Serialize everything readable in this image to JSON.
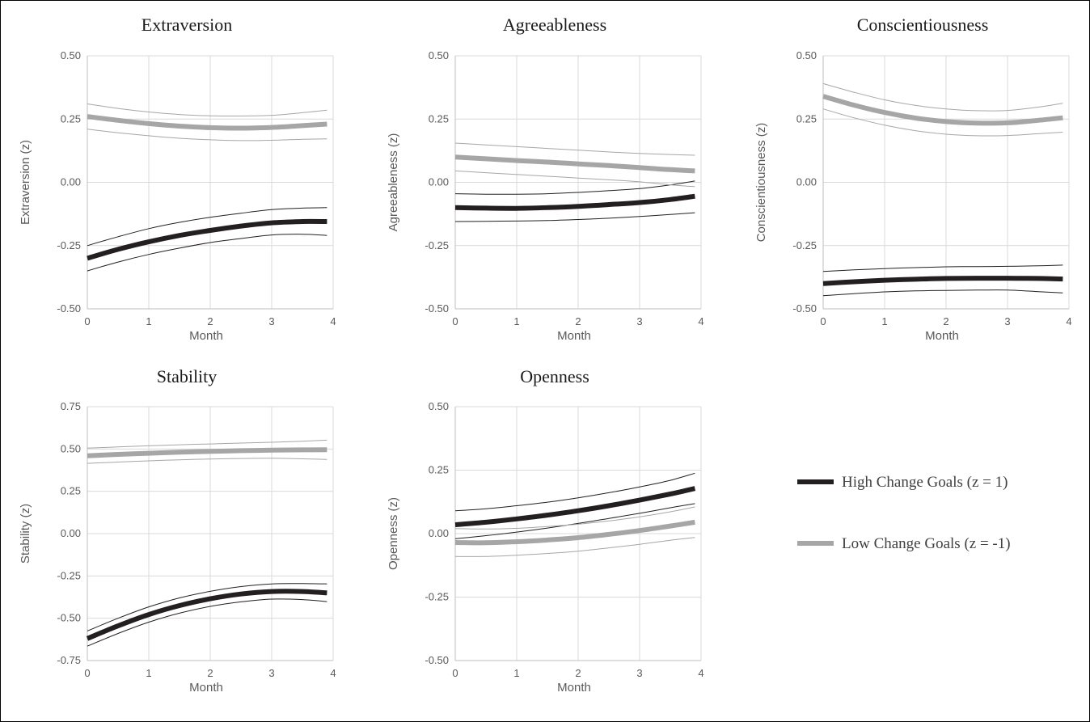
{
  "chart_data": [
    {
      "type": "line",
      "title": "Extraversion",
      "xlabel": "Month",
      "ylabel": "Extraversion (z)",
      "xlim": [
        0,
        4
      ],
      "ylim": [
        -0.5,
        0.5
      ],
      "xticks": [
        "0",
        "1",
        "2",
        "3",
        "4"
      ],
      "yticks": [
        "0.50",
        "0.25",
        "0.00",
        "-0.25",
        "-0.50"
      ],
      "yticks_values": [
        0.5,
        0.25,
        0,
        -0.25,
        -0.5
      ],
      "grid": "vertical",
      "x": [
        0,
        0.5,
        1,
        1.5,
        2,
        2.5,
        3,
        3.5,
        3.9
      ],
      "series": [
        {
          "name": "High Change Goals (z = 1)",
          "role": "estimate",
          "group": "high",
          "values": [
            -0.3,
            -0.265,
            -0.235,
            -0.21,
            -0.19,
            -0.173,
            -0.16,
            -0.155,
            -0.155
          ]
        },
        {
          "role": "upper-bound",
          "group": "high",
          "values": [
            -0.25,
            -0.215,
            -0.183,
            -0.158,
            -0.138,
            -0.122,
            -0.108,
            -0.102,
            -0.1
          ]
        },
        {
          "role": "lower-bound",
          "group": "high",
          "values": [
            -0.35,
            -0.315,
            -0.285,
            -0.26,
            -0.238,
            -0.222,
            -0.208,
            -0.205,
            -0.21
          ]
        },
        {
          "name": "Low Change Goals (z = -1)",
          "role": "estimate",
          "group": "low",
          "values": [
            0.26,
            0.245,
            0.232,
            0.222,
            0.216,
            0.214,
            0.217,
            0.224,
            0.23
          ]
        },
        {
          "role": "upper-bound",
          "group": "low",
          "values": [
            0.31,
            0.292,
            0.278,
            0.268,
            0.263,
            0.262,
            0.265,
            0.275,
            0.285
          ]
        },
        {
          "role": "lower-bound",
          "group": "low",
          "values": [
            0.21,
            0.196,
            0.184,
            0.174,
            0.168,
            0.165,
            0.166,
            0.17,
            0.172
          ]
        }
      ]
    },
    {
      "type": "line",
      "title": "Agreeableness",
      "xlabel": "Month",
      "ylabel": "Agreeableness (z)",
      "xlim": [
        0,
        4
      ],
      "ylim": [
        -0.5,
        0.5
      ],
      "xticks": [
        "0",
        "1",
        "2",
        "3",
        "4"
      ],
      "yticks": [
        "0.50",
        "0.25",
        "0.00",
        "-0.25",
        "-0.50"
      ],
      "yticks_values": [
        0.5,
        0.25,
        0,
        -0.25,
        -0.5
      ],
      "grid": "vertical",
      "x": [
        0,
        0.5,
        1,
        1.5,
        2,
        2.5,
        3,
        3.5,
        3.9
      ],
      "series": [
        {
          "name": "High Change Goals (z = 1)",
          "role": "estimate",
          "group": "high",
          "values": [
            -0.1,
            -0.102,
            -0.103,
            -0.1,
            -0.095,
            -0.088,
            -0.08,
            -0.068,
            -0.055
          ]
        },
        {
          "role": "upper-bound",
          "group": "high",
          "values": [
            -0.045,
            -0.047,
            -0.047,
            -0.045,
            -0.04,
            -0.033,
            -0.025,
            -0.01,
            0.005
          ]
        },
        {
          "role": "lower-bound",
          "group": "high",
          "values": [
            -0.155,
            -0.154,
            -0.153,
            -0.151,
            -0.147,
            -0.142,
            -0.135,
            -0.127,
            -0.12
          ]
        },
        {
          "name": "Low Change Goals (z = -1)",
          "role": "estimate",
          "group": "low",
          "values": [
            0.1,
            0.093,
            0.086,
            0.08,
            0.073,
            0.066,
            0.058,
            0.05,
            0.045
          ]
        },
        {
          "role": "upper-bound",
          "group": "low",
          "values": [
            0.155,
            0.148,
            0.141,
            0.134,
            0.127,
            0.12,
            0.114,
            0.11,
            0.107
          ]
        },
        {
          "role": "lower-bound",
          "group": "low",
          "values": [
            0.045,
            0.038,
            0.031,
            0.024,
            0.017,
            0.01,
            0.002,
            -0.01,
            -0.017
          ]
        }
      ]
    },
    {
      "type": "line",
      "title": "Conscientiousness",
      "xlabel": "Month",
      "ylabel": "Conscientiousness (z)",
      "xlim": [
        0,
        4
      ],
      "ylim": [
        -0.5,
        0.5
      ],
      "xticks": [
        "0",
        "1",
        "2",
        "3",
        "4"
      ],
      "yticks": [
        "0.50",
        "0.25",
        "0.00",
        "-0.25",
        "-0.50"
      ],
      "yticks_values": [
        0.5,
        0.25,
        0,
        -0.25,
        -0.5
      ],
      "grid": "vertical",
      "x": [
        0,
        0.5,
        1,
        1.5,
        2,
        2.5,
        3,
        3.5,
        3.9
      ],
      "series": [
        {
          "name": "High Change Goals (z = 1)",
          "role": "estimate",
          "group": "high",
          "values": [
            -0.4,
            -0.393,
            -0.387,
            -0.383,
            -0.38,
            -0.379,
            -0.379,
            -0.38,
            -0.382
          ]
        },
        {
          "role": "upper-bound",
          "group": "high",
          "values": [
            -0.352,
            -0.346,
            -0.341,
            -0.337,
            -0.334,
            -0.333,
            -0.332,
            -0.33,
            -0.327
          ]
        },
        {
          "role": "lower-bound",
          "group": "high",
          "values": [
            -0.448,
            -0.44,
            -0.433,
            -0.429,
            -0.427,
            -0.426,
            -0.426,
            -0.432,
            -0.437
          ]
        },
        {
          "name": "Low Change Goals (z = -1)",
          "role": "estimate",
          "group": "low",
          "values": [
            0.34,
            0.305,
            0.276,
            0.254,
            0.24,
            0.234,
            0.235,
            0.245,
            0.255
          ]
        },
        {
          "role": "upper-bound",
          "group": "low",
          "values": [
            0.39,
            0.356,
            0.326,
            0.304,
            0.29,
            0.283,
            0.284,
            0.297,
            0.312
          ]
        },
        {
          "role": "lower-bound",
          "group": "low",
          "values": [
            0.29,
            0.255,
            0.226,
            0.204,
            0.19,
            0.184,
            0.185,
            0.192,
            0.198
          ]
        }
      ]
    },
    {
      "type": "line",
      "title": "Stability",
      "xlabel": "Month",
      "ylabel": "Stability (z)",
      "xlim": [
        0,
        4
      ],
      "ylim": [
        -0.75,
        0.75
      ],
      "xticks": [
        "0",
        "1",
        "2",
        "3",
        "4"
      ],
      "yticks": [
        "0.75",
        "0.50",
        "0.25",
        "0.00",
        "-0.25",
        "-0.50",
        "-0.75"
      ],
      "yticks_values": [
        0.75,
        0.5,
        0.25,
        0,
        -0.25,
        -0.5,
        -0.75
      ],
      "grid": "vertical",
      "x": [
        0,
        0.5,
        1,
        1.5,
        2,
        2.5,
        3,
        3.5,
        3.9
      ],
      "series": [
        {
          "name": "High Change Goals (z = 1)",
          "role": "estimate",
          "group": "high",
          "values": [
            -0.62,
            -0.545,
            -0.478,
            -0.425,
            -0.385,
            -0.357,
            -0.342,
            -0.342,
            -0.35
          ]
        },
        {
          "role": "upper-bound",
          "group": "high",
          "values": [
            -0.575,
            -0.5,
            -0.433,
            -0.38,
            -0.341,
            -0.313,
            -0.297,
            -0.295,
            -0.297
          ]
        },
        {
          "role": "lower-bound",
          "group": "high",
          "values": [
            -0.665,
            -0.59,
            -0.523,
            -0.47,
            -0.43,
            -0.403,
            -0.387,
            -0.39,
            -0.402
          ]
        },
        {
          "name": "Low Change Goals (z = -1)",
          "role": "estimate",
          "group": "low",
          "values": [
            0.46,
            0.468,
            0.475,
            0.481,
            0.486,
            0.49,
            0.493,
            0.495,
            0.496
          ]
        },
        {
          "role": "upper-bound",
          "group": "low",
          "values": [
            0.505,
            0.512,
            0.519,
            0.525,
            0.53,
            0.535,
            0.54,
            0.546,
            0.552
          ]
        },
        {
          "role": "lower-bound",
          "group": "low",
          "values": [
            0.415,
            0.423,
            0.43,
            0.436,
            0.441,
            0.444,
            0.445,
            0.442,
            0.438
          ]
        }
      ]
    },
    {
      "type": "line",
      "title": "Openness",
      "xlabel": "Month",
      "ylabel": "Openness (z)",
      "xlim": [
        0,
        4
      ],
      "ylim": [
        -0.5,
        0.5
      ],
      "xticks": [
        "0",
        "1",
        "2",
        "3",
        "4"
      ],
      "yticks": [
        "0.50",
        "0.25",
        "0.00",
        "-0.25",
        "-0.50"
      ],
      "yticks_values": [
        0.5,
        0.25,
        0,
        -0.25,
        -0.5
      ],
      "grid": "vertical",
      "x": [
        0,
        0.5,
        1,
        1.5,
        2,
        2.5,
        3,
        3.5,
        3.9
      ],
      "series": [
        {
          "name": "High Change Goals (z = 1)",
          "role": "estimate",
          "group": "high",
          "values": [
            0.035,
            0.045,
            0.058,
            0.073,
            0.09,
            0.11,
            0.132,
            0.156,
            0.178
          ]
        },
        {
          "role": "upper-bound",
          "group": "high",
          "values": [
            0.09,
            0.098,
            0.11,
            0.124,
            0.141,
            0.161,
            0.184,
            0.21,
            0.238
          ]
        },
        {
          "role": "lower-bound",
          "group": "high",
          "values": [
            -0.02,
            -0.008,
            0.006,
            0.022,
            0.04,
            0.06,
            0.08,
            0.102,
            0.118
          ]
        },
        {
          "name": "Low Change Goals (z = -1)",
          "role": "estimate",
          "group": "low",
          "values": [
            -0.035,
            -0.036,
            -0.032,
            -0.025,
            -0.016,
            -0.003,
            0.012,
            0.03,
            0.045
          ]
        },
        {
          "role": "upper-bound",
          "group": "low",
          "values": [
            0.02,
            0.018,
            0.021,
            0.028,
            0.037,
            0.05,
            0.066,
            0.086,
            0.105
          ]
        },
        {
          "role": "lower-bound",
          "group": "low",
          "values": [
            -0.09,
            -0.09,
            -0.085,
            -0.078,
            -0.069,
            -0.056,
            -0.042,
            -0.026,
            -0.015
          ]
        }
      ]
    }
  ],
  "legend": {
    "placement": "right",
    "items": [
      {
        "label": "High Change Goals (z = 1)",
        "color": "#231f20"
      },
      {
        "label": "Low Change Goals (z = -1)",
        "color": "#a6a6a6"
      }
    ]
  },
  "colors": {
    "high": "#231f20",
    "low": "#a6a6a6",
    "grid": "#d9d9d9",
    "axis": "#bfbfbf"
  }
}
